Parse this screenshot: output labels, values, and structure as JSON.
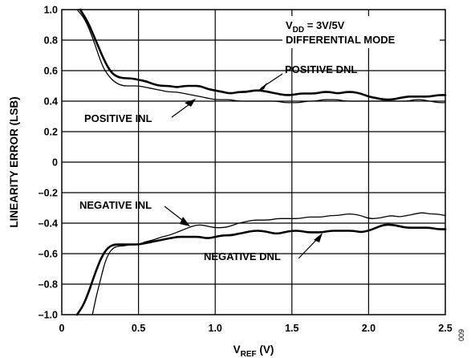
{
  "chart_data": {
    "type": "line",
    "xlabel": {
      "main": "V",
      "sub": "REF",
      "suffix": " (V)"
    },
    "ylabel": "LINEARITY ERROR (LSB)",
    "xlim": [
      0,
      2.5
    ],
    "ylim": [
      -1.0,
      1.0
    ],
    "xticks": [
      "0",
      "0.5",
      "1.0",
      "1.5",
      "2.0",
      "2.5"
    ],
    "yticks": [
      "1.0",
      "0.8",
      "0.6",
      "0.4",
      "0.2",
      "0",
      "–0.2",
      "–0.4",
      "–0.6",
      "–0.8",
      "–1.0"
    ],
    "grid": true,
    "annotations": {
      "condition_line1": {
        "main": "V",
        "sub": "DD",
        "suffix": " = 3V/5V"
      },
      "condition_line2": "DIFFERENTIAL MODE",
      "positive_dnl": "POSITIVE DNL",
      "positive_inl": "POSITIVE INL",
      "negative_inl": "NEGATIVE INL",
      "negative_dnl": "NEGATIVE DNL"
    },
    "figure_id": "009",
    "series": [
      {
        "name": "POSITIVE DNL",
        "style": "thick",
        "x": [
          0.12,
          0.17,
          0.22,
          0.28,
          0.32,
          0.36,
          0.4,
          0.45,
          0.5,
          0.55,
          0.6,
          0.65,
          0.7,
          0.75,
          0.8,
          0.85,
          0.9,
          0.95,
          1.0,
          1.05,
          1.1,
          1.15,
          1.2,
          1.25,
          1.3,
          1.35,
          1.4,
          1.45,
          1.5,
          1.55,
          1.6,
          1.65,
          1.7,
          1.75,
          1.8,
          1.85,
          1.9,
          1.95,
          2.0,
          2.05,
          2.1,
          2.15,
          2.2,
          2.25,
          2.3,
          2.35,
          2.4,
          2.45,
          2.5
        ],
        "y": [
          1.0,
          0.92,
          0.8,
          0.66,
          0.59,
          0.56,
          0.55,
          0.55,
          0.54,
          0.53,
          0.51,
          0.5,
          0.5,
          0.49,
          0.5,
          0.5,
          0.5,
          0.48,
          0.47,
          0.46,
          0.45,
          0.46,
          0.46,
          0.47,
          0.47,
          0.46,
          0.45,
          0.44,
          0.44,
          0.45,
          0.45,
          0.45,
          0.46,
          0.46,
          0.45,
          0.46,
          0.46,
          0.45,
          0.43,
          0.42,
          0.41,
          0.41,
          0.42,
          0.43,
          0.43,
          0.43,
          0.43,
          0.44,
          0.44
        ]
      },
      {
        "name": "POSITIVE INL",
        "style": "thin",
        "x": [
          0.1,
          0.15,
          0.2,
          0.26,
          0.3,
          0.35,
          0.4,
          0.45,
          0.5,
          0.55,
          0.6,
          0.65,
          0.7,
          0.75,
          0.8,
          0.85,
          0.9,
          0.95,
          1.0,
          1.05,
          1.1,
          1.15,
          1.2,
          1.25,
          1.3,
          1.35,
          1.4,
          1.45,
          1.5,
          1.55,
          1.6,
          1.65,
          1.7,
          1.75,
          1.8,
          1.85,
          1.9,
          1.95,
          2.0,
          2.05,
          2.1,
          2.15,
          2.2,
          2.25,
          2.3,
          2.35,
          2.4,
          2.45,
          2.5
        ],
        "y": [
          1.0,
          0.94,
          0.82,
          0.64,
          0.57,
          0.52,
          0.5,
          0.5,
          0.5,
          0.49,
          0.48,
          0.47,
          0.46,
          0.46,
          0.45,
          0.44,
          0.43,
          0.42,
          0.41,
          0.41,
          0.41,
          0.4,
          0.4,
          0.4,
          0.4,
          0.4,
          0.4,
          0.39,
          0.39,
          0.39,
          0.4,
          0.4,
          0.41,
          0.41,
          0.41,
          0.4,
          0.4,
          0.4,
          0.4,
          0.4,
          0.4,
          0.4,
          0.4,
          0.4,
          0.41,
          0.41,
          0.4,
          0.39,
          0.39
        ]
      },
      {
        "name": "NEGATIVE INL",
        "style": "thin",
        "x": [
          0.2,
          0.22,
          0.25,
          0.28,
          0.31,
          0.34,
          0.37,
          0.4,
          0.45,
          0.5,
          0.55,
          0.6,
          0.65,
          0.7,
          0.75,
          0.8,
          0.85,
          0.9,
          0.95,
          1.0,
          1.05,
          1.1,
          1.15,
          1.2,
          1.25,
          1.3,
          1.35,
          1.4,
          1.45,
          1.5,
          1.55,
          1.6,
          1.65,
          1.7,
          1.75,
          1.8,
          1.85,
          1.9,
          1.95,
          2.0,
          2.05,
          2.1,
          2.15,
          2.2,
          2.25,
          2.3,
          2.35,
          2.4,
          2.45,
          2.5
        ],
        "y": [
          -1.0,
          -0.9,
          -0.78,
          -0.66,
          -0.59,
          -0.56,
          -0.55,
          -0.55,
          -0.54,
          -0.54,
          -0.52,
          -0.51,
          -0.49,
          -0.48,
          -0.46,
          -0.44,
          -0.42,
          -0.41,
          -0.42,
          -0.43,
          -0.43,
          -0.42,
          -0.4,
          -0.39,
          -0.38,
          -0.38,
          -0.38,
          -0.37,
          -0.37,
          -0.37,
          -0.37,
          -0.36,
          -0.36,
          -0.36,
          -0.35,
          -0.35,
          -0.34,
          -0.34,
          -0.35,
          -0.37,
          -0.37,
          -0.36,
          -0.35,
          -0.36,
          -0.35,
          -0.34,
          -0.33,
          -0.34,
          -0.34,
          -0.35
        ]
      },
      {
        "name": "NEGATIVE DNL",
        "style": "thick",
        "x": [
          0.1,
          0.14,
          0.18,
          0.22,
          0.26,
          0.3,
          0.34,
          0.38,
          0.42,
          0.46,
          0.5,
          0.55,
          0.6,
          0.65,
          0.7,
          0.75,
          0.8,
          0.85,
          0.9,
          0.95,
          1.0,
          1.05,
          1.1,
          1.15,
          1.2,
          1.25,
          1.3,
          1.35,
          1.4,
          1.45,
          1.5,
          1.55,
          1.6,
          1.65,
          1.7,
          1.75,
          1.8,
          1.85,
          1.9,
          1.95,
          2.0,
          2.05,
          2.1,
          2.15,
          2.2,
          2.25,
          2.3,
          2.35,
          2.4,
          2.45,
          2.5
        ],
        "y": [
          -1.0,
          -0.94,
          -0.84,
          -0.72,
          -0.62,
          -0.56,
          -0.54,
          -0.54,
          -0.54,
          -0.54,
          -0.54,
          -0.53,
          -0.52,
          -0.51,
          -0.5,
          -0.49,
          -0.49,
          -0.49,
          -0.49,
          -0.5,
          -0.49,
          -0.48,
          -0.48,
          -0.47,
          -0.46,
          -0.45,
          -0.45,
          -0.46,
          -0.47,
          -0.46,
          -0.45,
          -0.45,
          -0.46,
          -0.46,
          -0.46,
          -0.45,
          -0.45,
          -0.45,
          -0.45,
          -0.46,
          -0.45,
          -0.43,
          -0.41,
          -0.41,
          -0.42,
          -0.43,
          -0.43,
          -0.43,
          -0.43,
          -0.44,
          -0.44
        ]
      }
    ]
  }
}
